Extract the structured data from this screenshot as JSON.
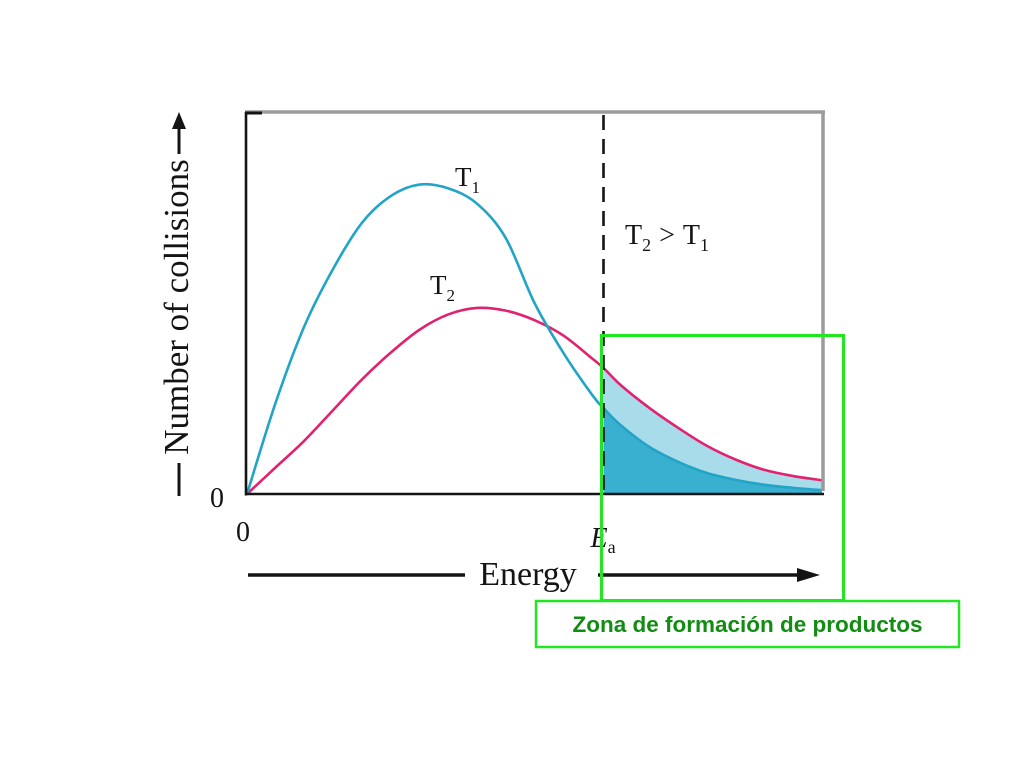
{
  "chart_data": {
    "type": "line",
    "title": "",
    "xlabel": "Energy",
    "ylabel": "Number of collisions",
    "xlim": [
      0,
      100
    ],
    "ylim": [
      0,
      100
    ],
    "grid": false,
    "x_tick_labels": [
      "0"
    ],
    "y_tick_labels": [
      "0"
    ],
    "threshold": {
      "x": 62,
      "label": "E",
      "label_sub": "a"
    },
    "series": [
      {
        "label": "T",
        "label_sub": "1",
        "color": "#22a4c6",
        "fill_color": "#3ab0d0",
        "x": [
          0,
          5,
          10,
          15,
          20,
          25,
          30,
          35,
          40,
          45,
          50,
          55,
          60,
          62,
          65,
          70,
          75,
          80,
          85,
          90,
          95,
          100
        ],
        "y": [
          0,
          24,
          44,
          59,
          71,
          78,
          81,
          80,
          76,
          67,
          50,
          37,
          26,
          22.5,
          18,
          12.3,
          8.4,
          5.5,
          3.7,
          2.4,
          1.6,
          1.0
        ]
      },
      {
        "label": "T",
        "label_sub": "2",
        "color": "#e2226f",
        "fill_color": "#a8dcea",
        "x": [
          0,
          5,
          10,
          15,
          20,
          25,
          30,
          35,
          40,
          45,
          50,
          55,
          60,
          62,
          65,
          70,
          75,
          80,
          85,
          90,
          95,
          100
        ],
        "y": [
          0,
          7,
          14,
          22,
          30,
          37,
          43,
          47,
          48.7,
          48,
          45.5,
          41.5,
          35.5,
          33,
          28.5,
          22.5,
          17.3,
          12.6,
          9,
          6.3,
          4.7,
          3.6
        ]
      }
    ],
    "annotation": {
      "left": "T",
      "left_sub": "2",
      "op": ">",
      "right": "T",
      "right_sub": "1"
    }
  },
  "slide": {
    "highlight_label": "Zona de formación de productos",
    "highlight_color": "#22e622",
    "label_color": "#128c12"
  }
}
